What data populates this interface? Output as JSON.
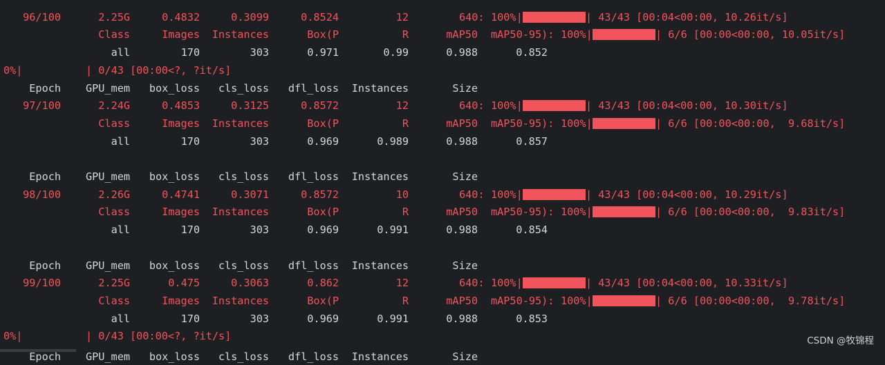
{
  "watermark": "CSDN @牧锦程",
  "colors": {
    "accent_red": "#f2545b",
    "text_white": "#d6d6d6",
    "background": "#1e1f22"
  },
  "lines": [
    {
      "type": "header-cut",
      "text": "  Epoch    GPU_mem   box_loss   cls_loss   dfl_loss  Instances       Size"
    },
    {
      "type": "train",
      "epoch": "96/100",
      "gpu_mem": "2.25G",
      "box_loss": "0.4832",
      "cls_loss": "0.3099",
      "dfl_loss": "0.8524",
      "instances": "12",
      "size": "640:",
      "pct": "100%|",
      "progress": 1.0,
      "tail": "| 43/43 [00:04<00:00, 10.26it/s]"
    },
    {
      "type": "val-header",
      "class": "Class",
      "images": "Images",
      "instances": "Instances",
      "boxp": "Box(P",
      "r": "R",
      "map50": "mAP50",
      "map5095": "mAP50-95):",
      "pct": "100%|",
      "progress": 1.0,
      "tail": "| 6/6 [00:00<00:00, 10.05it/s]"
    },
    {
      "type": "val-all",
      "class": "all",
      "images": "170",
      "instances": "303",
      "boxp": "0.971",
      "r": "0.99",
      "map50": "0.988",
      "map5095": "0.852"
    },
    {
      "type": "zero",
      "pct": "0%|",
      "tail": "| 0/43 [00:00<?, ?it/s]"
    },
    {
      "type": "header",
      "epoch": "Epoch",
      "gpu_mem": "GPU_mem",
      "box_loss": "box_loss",
      "cls_loss": "cls_loss",
      "dfl_loss": "dfl_loss",
      "instances": "Instances",
      "size": "Size"
    },
    {
      "type": "train",
      "epoch": "97/100",
      "gpu_mem": "2.24G",
      "box_loss": "0.4853",
      "cls_loss": "0.3125",
      "dfl_loss": "0.8572",
      "instances": "12",
      "size": "640:",
      "pct": "100%|",
      "progress": 1.0,
      "tail": "| 43/43 [00:04<00:00, 10.30it/s]"
    },
    {
      "type": "val-header",
      "class": "Class",
      "images": "Images",
      "instances": "Instances",
      "boxp": "Box(P",
      "r": "R",
      "map50": "mAP50",
      "map5095": "mAP50-95):",
      "pct": "100%|",
      "progress": 1.0,
      "tail": "| 6/6 [00:00<00:00,  9.68it/s]"
    },
    {
      "type": "val-all",
      "class": "all",
      "images": "170",
      "instances": "303",
      "boxp": "0.969",
      "r": "0.989",
      "map50": "0.988",
      "map5095": "0.857"
    },
    {
      "type": "blank"
    },
    {
      "type": "header",
      "epoch": "Epoch",
      "gpu_mem": "GPU_mem",
      "box_loss": "box_loss",
      "cls_loss": "cls_loss",
      "dfl_loss": "dfl_loss",
      "instances": "Instances",
      "size": "Size"
    },
    {
      "type": "train",
      "epoch": "98/100",
      "gpu_mem": "2.26G",
      "box_loss": "0.4741",
      "cls_loss": "0.3071",
      "dfl_loss": "0.8572",
      "instances": "10",
      "size": "640:",
      "pct": "100%|",
      "progress": 1.0,
      "tail": "| 43/43 [00:04<00:00, 10.29it/s]"
    },
    {
      "type": "val-header",
      "class": "Class",
      "images": "Images",
      "instances": "Instances",
      "boxp": "Box(P",
      "r": "R",
      "map50": "mAP50",
      "map5095": "mAP50-95):",
      "pct": "100%|",
      "progress": 1.0,
      "tail": "| 6/6 [00:00<00:00,  9.83it/s]"
    },
    {
      "type": "val-all",
      "class": "all",
      "images": "170",
      "instances": "303",
      "boxp": "0.969",
      "r": "0.991",
      "map50": "0.988",
      "map5095": "0.854"
    },
    {
      "type": "blank"
    },
    {
      "type": "header",
      "epoch": "Epoch",
      "gpu_mem": "GPU_mem",
      "box_loss": "box_loss",
      "cls_loss": "cls_loss",
      "dfl_loss": "dfl_loss",
      "instances": "Instances",
      "size": "Size"
    },
    {
      "type": "train",
      "epoch": "99/100",
      "gpu_mem": "2.25G",
      "box_loss": "0.475",
      "cls_loss": "0.3063",
      "dfl_loss": "0.862",
      "instances": "12",
      "size": "640:",
      "pct": "100%|",
      "progress": 1.0,
      "tail": "| 43/43 [00:04<00:00, 10.33it/s]"
    },
    {
      "type": "val-header",
      "class": "Class",
      "images": "Images",
      "instances": "Instances",
      "boxp": "Box(P",
      "r": "R",
      "map50": "mAP50",
      "map5095": "mAP50-95):",
      "pct": "100%|",
      "progress": 1.0,
      "tail": "| 6/6 [00:00<00:00,  9.78it/s]"
    },
    {
      "type": "val-all",
      "class": "all",
      "images": "170",
      "instances": "303",
      "boxp": "0.969",
      "r": "0.991",
      "map50": "0.988",
      "map5095": "0.853"
    },
    {
      "type": "zero",
      "pct": "0%|",
      "tail": "| 0/43 [00:00<?, ?it/s]"
    },
    {
      "type": "header-cut-bottom",
      "epoch": "Epoch",
      "gpu_mem": "GPU_mem",
      "box_loss": "box_loss",
      "cls_loss": "cls_loss",
      "dfl_loss": "dfl_loss",
      "instances": "Instances",
      "size": "Size"
    }
  ]
}
